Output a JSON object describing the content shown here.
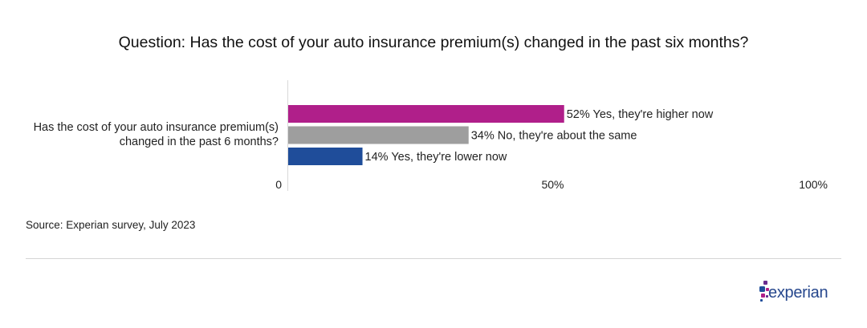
{
  "chart_data": {
    "type": "bar",
    "orientation": "horizontal",
    "title": "Question: Has the cost of your auto insurance premium(s) changed in the past six months?",
    "categories": [
      "Has the cost of your auto insurance premium(s) changed in the past 6 months?"
    ],
    "series": [
      {
        "name": "Yes, they're higher now",
        "values": [
          52
        ],
        "color": "#b01f8a"
      },
      {
        "name": "No, they're about the same",
        "values": [
          34
        ],
        "color": "#9e9e9e"
      },
      {
        "name": "Yes, they're lower now",
        "values": [
          14
        ],
        "color": "#1f4d9a"
      }
    ],
    "data_labels": [
      "52% Yes, they're higher now",
      "34% No, they're about the same",
      "14% Yes, they're lower now"
    ],
    "x_ticks": [
      "0",
      "50%",
      "100%"
    ],
    "xlim": [
      0,
      100
    ],
    "grid": false,
    "legend": "none"
  },
  "source": {
    "prefix": "Source:",
    "text": " Experian survey, July 2023"
  },
  "brand": {
    "name": "experian",
    "mark": "."
  }
}
